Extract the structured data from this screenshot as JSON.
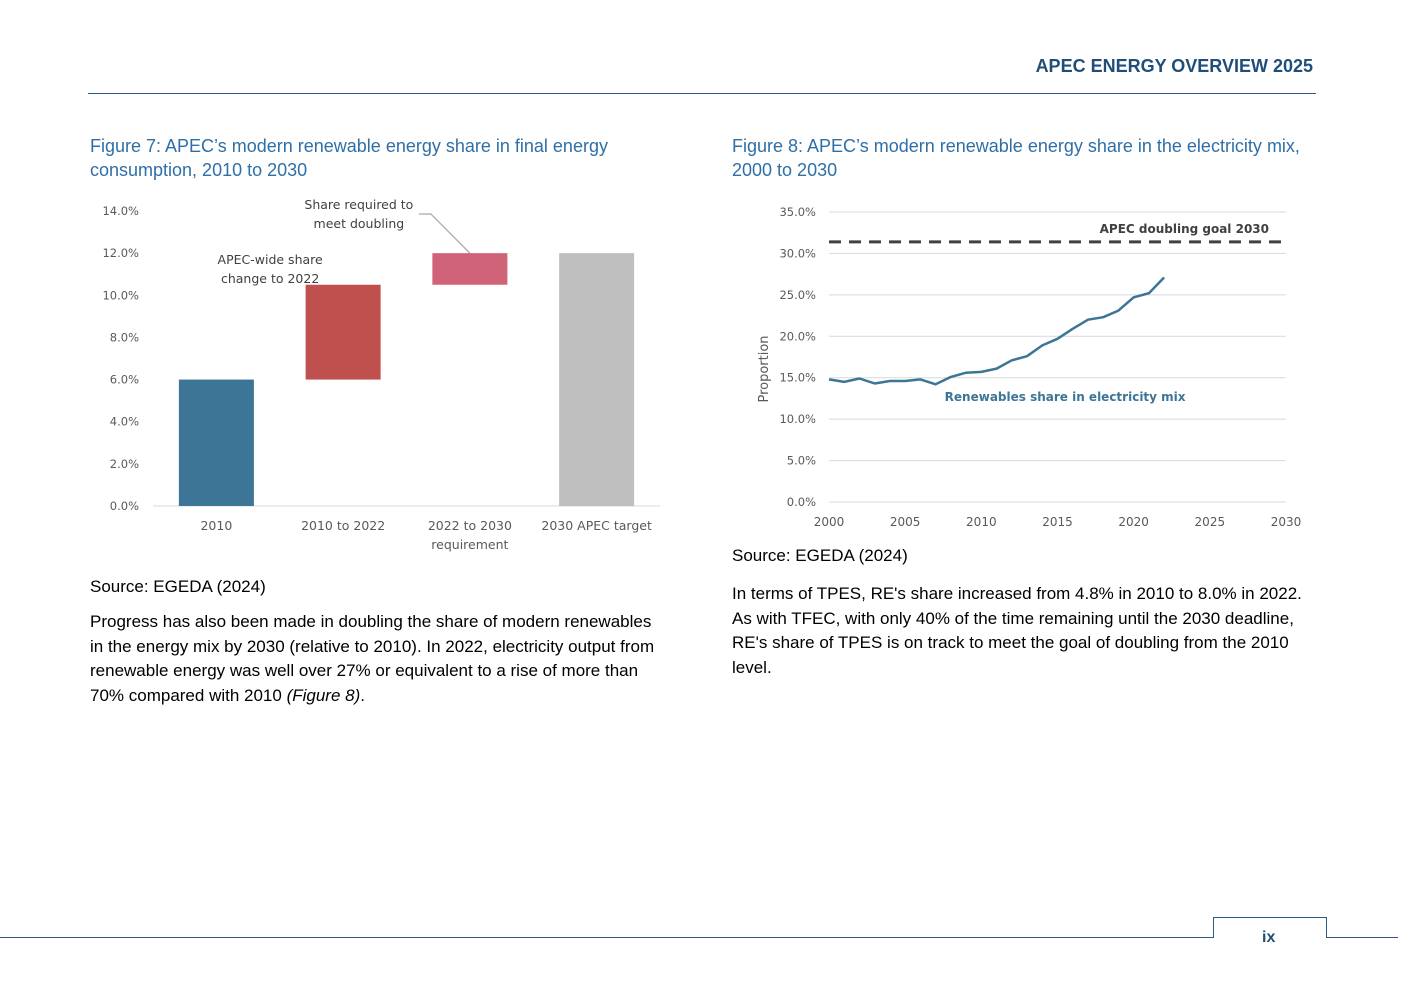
{
  "header": {
    "title": "APEC ENERGY OVERVIEW 2025"
  },
  "figure7": {
    "caption": "Figure 7: APEC’s modern renewable energy share in final energy consumption, 2010 to 2030",
    "source": "Source: EGEDA (2024)"
  },
  "figure8": {
    "caption": "Figure 8: APEC’s modern renewable energy share in the electricity mix, 2000 to 2030",
    "source": "Source: EGEDA (2024)"
  },
  "para_left": {
    "text": "Progress has also been made in doubling the share of modern renewables in the energy mix by 2030 (relative to 2010). In 2022, electricity output from renewable energy was well over 27% or equivalent to a rise of more than 70% compared with 2010 ",
    "ref": "(Figure 8)",
    "end": "."
  },
  "para_right": {
    "text": "In terms of TPES, RE's share increased from 4.8% in 2010 to 8.0% in 2022. As with TFEC, with only 40% of the time remaining until the 2030 deadline, RE's share of TPES is on track to meet the goal of doubling from the 2010 level."
  },
  "footer": {
    "page_number": "ix"
  },
  "chart_data": [
    {
      "type": "bar",
      "subtype": "waterfall",
      "categories": [
        "2010",
        "2010 to 2022",
        "2022 to 2030 requirement",
        "2030 APEC target"
      ],
      "tick_labels": [
        [
          "2010"
        ],
        [
          "2010 to 2022"
        ],
        [
          "2022 to 2030",
          "requirement"
        ],
        [
          "2030 APEC target"
        ]
      ],
      "bars": [
        {
          "base": 0.0,
          "value": 6.0,
          "color": "#3c7596"
        },
        {
          "base": 6.0,
          "value": 4.5,
          "color": "#c0504d"
        },
        {
          "base": 10.5,
          "value": 1.5,
          "color": "#d06377"
        },
        {
          "base": 0.0,
          "value": 12.0,
          "color": "#bfbfbf"
        }
      ],
      "annotations": [
        {
          "lines": [
            "APEC-wide share",
            "change to 2022"
          ],
          "for_category": "2010 to 2022"
        },
        {
          "lines": [
            "Share required to",
            "meet doubling"
          ],
          "for_category": "2022 to 2030 requirement",
          "leader": true
        }
      ],
      "ylim": [
        0,
        14
      ],
      "yticks": [
        "0.0%",
        "2.0%",
        "4.0%",
        "6.0%",
        "8.0%",
        "10.0%",
        "12.0%",
        "14.0%"
      ],
      "xlabel": "",
      "ylabel": "",
      "title": "",
      "grid": false
    },
    {
      "type": "line",
      "x": [
        2000,
        2001,
        2002,
        2003,
        2004,
        2005,
        2006,
        2007,
        2008,
        2009,
        2010,
        2011,
        2012,
        2013,
        2014,
        2015,
        2016,
        2017,
        2018,
        2019,
        2020,
        2021,
        2022
      ],
      "series": [
        {
          "name": "Renewables share in electricity mix",
          "color": "#3c7596",
          "values": [
            14.8,
            14.5,
            14.9,
            14.3,
            14.6,
            14.6,
            14.8,
            14.2,
            15.1,
            15.6,
            15.7,
            16.1,
            17.1,
            17.6,
            18.9,
            19.7,
            20.9,
            22.0,
            22.3,
            23.1,
            24.7,
            25.2,
            27.1
          ]
        }
      ],
      "reference_lines": [
        {
          "label": "APEC doubling goal 2030",
          "value": 31.4,
          "style": "dashed",
          "color": "#404040"
        }
      ],
      "xlim": [
        2000,
        2030
      ],
      "xticks": [
        "2000",
        "2005",
        "2010",
        "2015",
        "2020",
        "2025",
        "2030"
      ],
      "ylim": [
        0,
        35
      ],
      "yticks": [
        "0.0%",
        "5.0%",
        "10.0%",
        "15.0%",
        "20.0%",
        "25.0%",
        "30.0%",
        "35.0%"
      ],
      "ylabel": "Proportion",
      "xlabel": "",
      "title": "",
      "grid": true
    }
  ]
}
